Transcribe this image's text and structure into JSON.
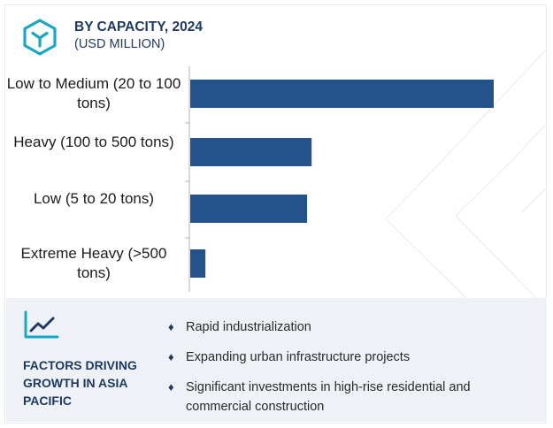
{
  "header": {
    "title": "BY CAPACITY, 2024",
    "subtitle": "(USD MILLION)"
  },
  "chart_data": {
    "type": "bar",
    "orientation": "horizontal",
    "categories": [
      "Low to Medium (20 to 100 tons)",
      "Heavy (100 to 500 tons)",
      "Low (5 to 20 tons)",
      "Extreme Heavy (>500 tons)"
    ],
    "values": [
      100,
      40,
      38.5,
      5
    ],
    "value_scale": "relative (no axis values shown)",
    "bar_color": "#24528a",
    "grid": false,
    "legend": "none"
  },
  "factors": {
    "title": "FACTORS DRIVING GROWTH IN ASIA PACIFIC",
    "items": [
      "Rapid industrialization",
      "Expanding urban infrastructure projects",
      "Significant investments in high-rise residential and commercial construction"
    ]
  },
  "icons": {
    "header": "hexagon-logo-icon",
    "footer": "trend-chart-icon",
    "bullet": "diamond-bullet-icon"
  },
  "colors": {
    "primary": "#1f3a60",
    "bar": "#24528a",
    "icon_accent": "#1aa6c4",
    "footer_bg": "#eef1f5"
  }
}
